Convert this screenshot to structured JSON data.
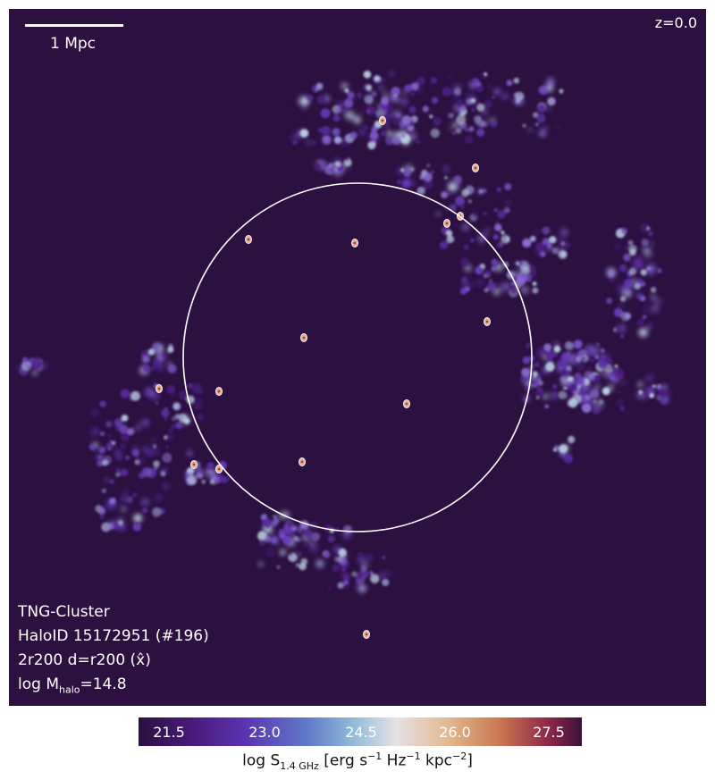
{
  "image": {
    "description_colors": {
      "background": "#2b1040",
      "circle": "#ffffff"
    },
    "scale_bar": {
      "label": "1 Mpc"
    },
    "redshift": "z=0.0",
    "info_lines": {
      "simulation": "TNG-Cluster",
      "halo_id": "HaloID 15172951 (#196)",
      "projection": "2r200 d=r200 (x̂)",
      "halo_mass_prefix": "log M",
      "halo_mass_sub": "halo",
      "halo_mass_value": "=14.8"
    },
    "colorbar": {
      "ticks": [
        "21.5",
        "23.0",
        "24.5",
        "26.0",
        "27.5"
      ],
      "label_prefix": "log S",
      "label_sub": "1.4 GHz",
      "label_units_1": " [erg s",
      "label_sup_1": "−1",
      "label_units_2": " Hz",
      "label_sup_2": "−1",
      "label_units_3": " kpc",
      "label_sup_3": "−2",
      "label_units_4": "]"
    }
  }
}
